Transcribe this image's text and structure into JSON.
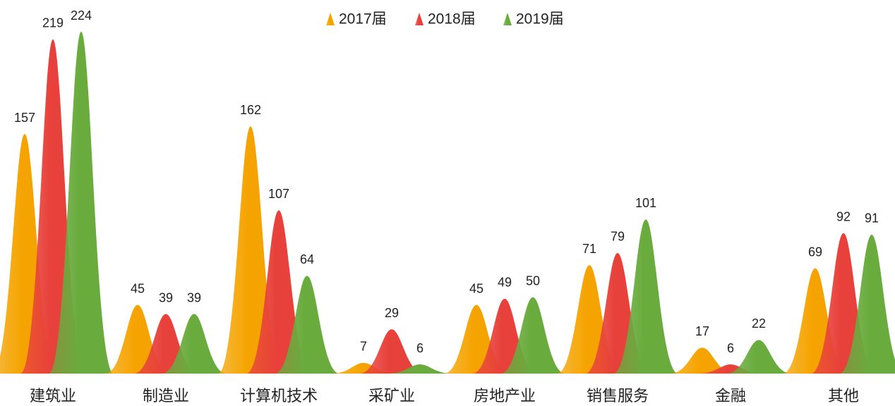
{
  "chart_data": {
    "type": "mountain",
    "categories": [
      "建筑业",
      "制造业",
      "计算机技术",
      "采矿业",
      "房地产业",
      "销售服务",
      "金融",
      "其他"
    ],
    "series": [
      {
        "name": "2017届",
        "color": "#f5a300",
        "values": [
          157,
          45,
          162,
          7,
          45,
          71,
          17,
          69
        ]
      },
      {
        "name": "2018届",
        "color": "#e8413b",
        "values": [
          219,
          39,
          107,
          29,
          49,
          79,
          6,
          92
        ]
      },
      {
        "name": "2019届",
        "color": "#6aab3e",
        "values": [
          224,
          39,
          64,
          6,
          50,
          101,
          22,
          91
        ]
      }
    ],
    "legend": "top"
  }
}
